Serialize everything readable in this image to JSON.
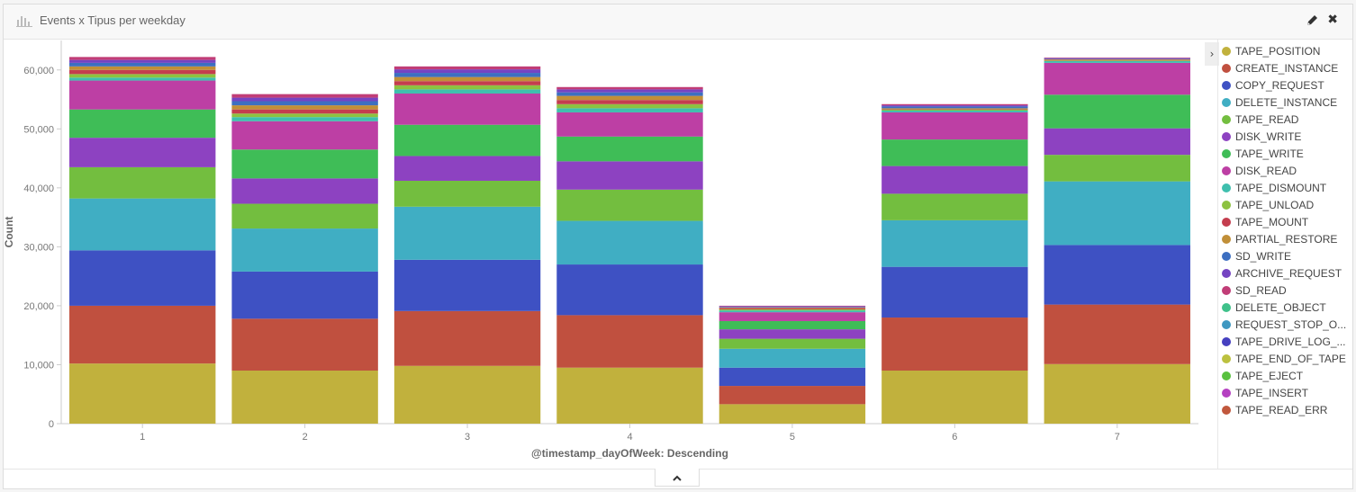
{
  "header": {
    "title": "Events x Tipus per weekday"
  },
  "legend_toggle_glyph": "›",
  "chart_data": {
    "type": "bar",
    "stacked": true,
    "categories": [
      "1",
      "2",
      "3",
      "4",
      "5",
      "6",
      "7"
    ],
    "xlabel": "@timestamp_dayOfWeek: Descending",
    "ylabel": "Count",
    "ylim": [
      0,
      65000
    ],
    "yticks": [
      0,
      10000,
      20000,
      30000,
      40000,
      50000,
      60000
    ],
    "ytick_labels": [
      "0",
      "10,000",
      "20,000",
      "30,000",
      "40,000",
      "50,000",
      "60,000"
    ],
    "legend_position": "right",
    "series": [
      {
        "name": "TAPE_POSITION",
        "color": "#c1b13d",
        "values": [
          10200,
          9000,
          9800,
          9500,
          3300,
          9000,
          10100
        ]
      },
      {
        "name": "CREATE_INSTANCE",
        "color": "#c0503f",
        "values": [
          9800,
          8800,
          9300,
          8900,
          3100,
          9000,
          10100
        ]
      },
      {
        "name": "COPY_REQUEST",
        "color": "#3e51c3",
        "values": [
          9400,
          8000,
          8700,
          8600,
          3100,
          8600,
          10100
        ]
      },
      {
        "name": "DELETE_INSTANCE",
        "color": "#40aec3",
        "values": [
          8800,
          7300,
          9000,
          7400,
          3200,
          7900,
          10800
        ]
      },
      {
        "name": "TAPE_READ",
        "color": "#73be3f",
        "values": [
          5300,
          4200,
          4400,
          5300,
          1700,
          4500,
          4500
        ]
      },
      {
        "name": "DISK_WRITE",
        "color": "#8d42c1",
        "values": [
          5000,
          4300,
          4200,
          4800,
          1600,
          4700,
          4500
        ]
      },
      {
        "name": "TAPE_WRITE",
        "color": "#3fbd57",
        "values": [
          4800,
          4900,
          5300,
          4200,
          1400,
          4500,
          5700
        ]
      },
      {
        "name": "DISK_READ",
        "color": "#bd3fa4",
        "values": [
          4900,
          4800,
          5300,
          4100,
          1500,
          4600,
          5400
        ]
      },
      {
        "name": "TAPE_DISMOUNT",
        "color": "#3fbfae",
        "values": [
          500,
          700,
          700,
          700,
          300,
          300,
          300
        ]
      },
      {
        "name": "TAPE_UNLOAD",
        "color": "#8dc240",
        "values": [
          600,
          600,
          700,
          700,
          200,
          200,
          100
        ]
      },
      {
        "name": "TAPE_MOUNT",
        "color": "#c43d4e",
        "values": [
          700,
          700,
          700,
          700,
          200,
          100,
          100
        ]
      },
      {
        "name": "PARTIAL_RESTORE",
        "color": "#c18f38",
        "values": [
          600,
          700,
          700,
          700,
          100,
          100,
          100
        ]
      },
      {
        "name": "SD_WRITE",
        "color": "#3d6fc1",
        "values": [
          600,
          700,
          700,
          600,
          100,
          300,
          100
        ]
      },
      {
        "name": "ARCHIVE_REQUEST",
        "color": "#7544c2",
        "values": [
          500,
          600,
          600,
          500,
          100,
          200,
          100
        ]
      },
      {
        "name": "SD_READ",
        "color": "#c13d77",
        "values": [
          500,
          600,
          500,
          400,
          100,
          200,
          100
        ]
      },
      {
        "name": "DELETE_OBJECT",
        "color": "#3fc18a",
        "values": [
          0,
          0,
          0,
          0,
          0,
          0,
          0
        ]
      },
      {
        "name": "REQUEST_STOP_O...",
        "color": "#3f98c1",
        "values": [
          0,
          0,
          0,
          0,
          0,
          0,
          0
        ]
      },
      {
        "name": "TAPE_DRIVE_LOG_...",
        "color": "#4640c0",
        "values": [
          0,
          0,
          0,
          0,
          0,
          0,
          0
        ]
      },
      {
        "name": "TAPE_END_OF_TAPE",
        "color": "#bcc13f",
        "values": [
          0,
          0,
          0,
          0,
          0,
          0,
          0
        ]
      },
      {
        "name": "TAPE_EJECT",
        "color": "#59c13f",
        "values": [
          0,
          0,
          0,
          0,
          0,
          0,
          0
        ]
      },
      {
        "name": "TAPE_INSERT",
        "color": "#b540c1",
        "values": [
          0,
          0,
          0,
          0,
          0,
          0,
          0
        ]
      },
      {
        "name": "TAPE_READ_ERR",
        "color": "#c1583d",
        "values": [
          0,
          0,
          0,
          0,
          0,
          0,
          0
        ]
      }
    ]
  }
}
